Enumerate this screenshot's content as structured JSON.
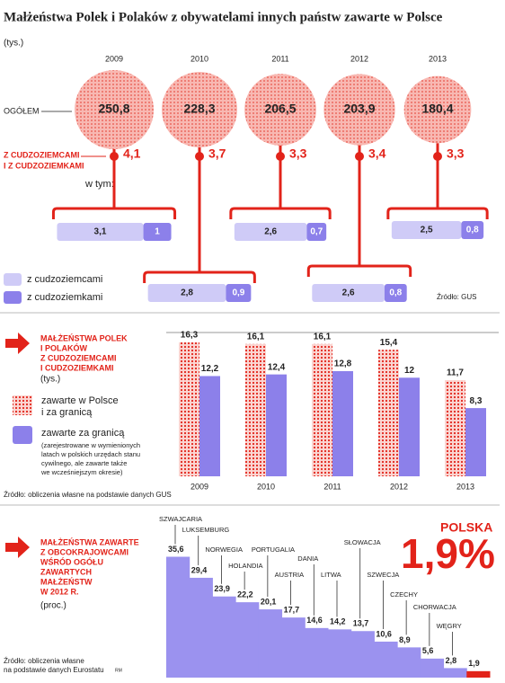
{
  "title": "Małżeństwa Polek i Polaków z obywatelami innych państw zawarte w Polsce",
  "unit": "(tys.)",
  "chart_data": [
    {
      "type": "bubble",
      "categories": [
        "2009",
        "2010",
        "2011",
        "2012",
        "2013"
      ],
      "total_label": "OGÓŁEM",
      "foreign_label": [
        "Z CUDZOZIEMCAMI",
        "I Z CUDZOZIEMKAMI"
      ],
      "breakdown_label": "w tym:",
      "totals": {
        "color": "#f4a09a",
        "values": [
          250.8,
          228.3,
          206.5,
          203.9,
          180.4
        ],
        "value_labels": [
          "250,8",
          "228,3",
          "206,5",
          "203,9",
          "180,4"
        ]
      },
      "foreign": {
        "color": "#e2231a",
        "values": [
          4.1,
          3.7,
          3.3,
          3.4,
          3.3
        ],
        "value_labels": [
          "4,1",
          "3,7",
          "3,3",
          "3,4",
          "3,3"
        ]
      },
      "series": [
        {
          "name": "z cudzoziemcami",
          "color": "#cfcbf7",
          "values": [
            3.1,
            2.8,
            2.6,
            2.6,
            2.5
          ],
          "value_labels": [
            "3,1",
            "2,8",
            "2,6",
            "2,6",
            "2,5"
          ]
        },
        {
          "name": "z cudzoziemkami",
          "color": "#8c80ea",
          "values": [
            1,
            0.9,
            0.7,
            0.8,
            0.8
          ],
          "value_labels": [
            "1",
            "0,9",
            "0,7",
            "0,8",
            "0,8"
          ]
        }
      ],
      "source": "Źródło: GUS"
    },
    {
      "type": "bar",
      "title": [
        "MAŁŻEŃSTWA POLEK",
        "I POLAKÓW",
        "Z CUDZOZIEMCAMI",
        "I CUDZOZIEMKAMI"
      ],
      "subtitle": "(tys.)",
      "categories": [
        "2009",
        "2010",
        "2011",
        "2012",
        "2013"
      ],
      "series": [
        {
          "name": [
            "zawarte w Polsce",
            "i za granicą"
          ],
          "color": "#e2231a",
          "values": [
            16.3,
            16.1,
            16.1,
            15.4,
            11.7
          ],
          "value_labels": [
            "16,3",
            "16,1",
            "16,1",
            "15,4",
            "11,7"
          ]
        },
        {
          "name": "zawarte za granicą",
          "color": "#8c80ea",
          "values": [
            12.2,
            12.4,
            12.8,
            12,
            8.3
          ],
          "value_labels": [
            "12,2",
            "12,4",
            "12,8",
            "12",
            "8,3"
          ]
        }
      ],
      "note": [
        "(zarejestrowane w wymienionych",
        "latach w polskich urzędach stanu",
        "cywilnego, ale zawarte także",
        "we wcześniejszym okresie)"
      ],
      "ylim": [
        0,
        17.5
      ],
      "source": "Źródło: obliczenia własne na podstawie danych GUS"
    },
    {
      "type": "step",
      "title": [
        "MAŁŻEŃSTWA ZAWARTE",
        "Z OBCOKRAJOWCAMI",
        "WŚRÓD OGÓŁU",
        "ZAWARTYCH",
        "MAŁŻEŃSTW",
        "W 2012 R."
      ],
      "subtitle": "(proc.)",
      "categories": [
        "SZWAJCARIA",
        "LUKSEMBURG",
        "NORWEGIA",
        "HOLANDIA",
        "PORTUGALIA",
        "AUSTRIA",
        "DANIA",
        "LITWA",
        "SŁOWACJA",
        "SZWECJA",
        "CZECHY",
        "CHORWACJA",
        "WĘGRY",
        null
      ],
      "values": [
        35.6,
        29.4,
        23.9,
        22.2,
        20.1,
        17.7,
        14.6,
        14.2,
        13.7,
        10.6,
        8.9,
        5.6,
        2.8,
        1.9
      ],
      "value_labels": [
        "35,6",
        "29,4",
        "23,9",
        "22,2",
        "20,1",
        "17,7",
        "14,6",
        "14,2",
        "13,7",
        "10,6",
        "8,9",
        "5,6",
        "2,8",
        "1,9"
      ],
      "color": "#9b92ef",
      "highlight_color": "#e2231a",
      "highlight": {
        "name": "POLSKA",
        "value": 1.9,
        "label": "1,9%"
      },
      "ylim": [
        0,
        36
      ],
      "source": [
        "Źródło: obliczenia własne",
        "na podstawie danych Eurostatu"
      ],
      "credit": "RM"
    }
  ]
}
